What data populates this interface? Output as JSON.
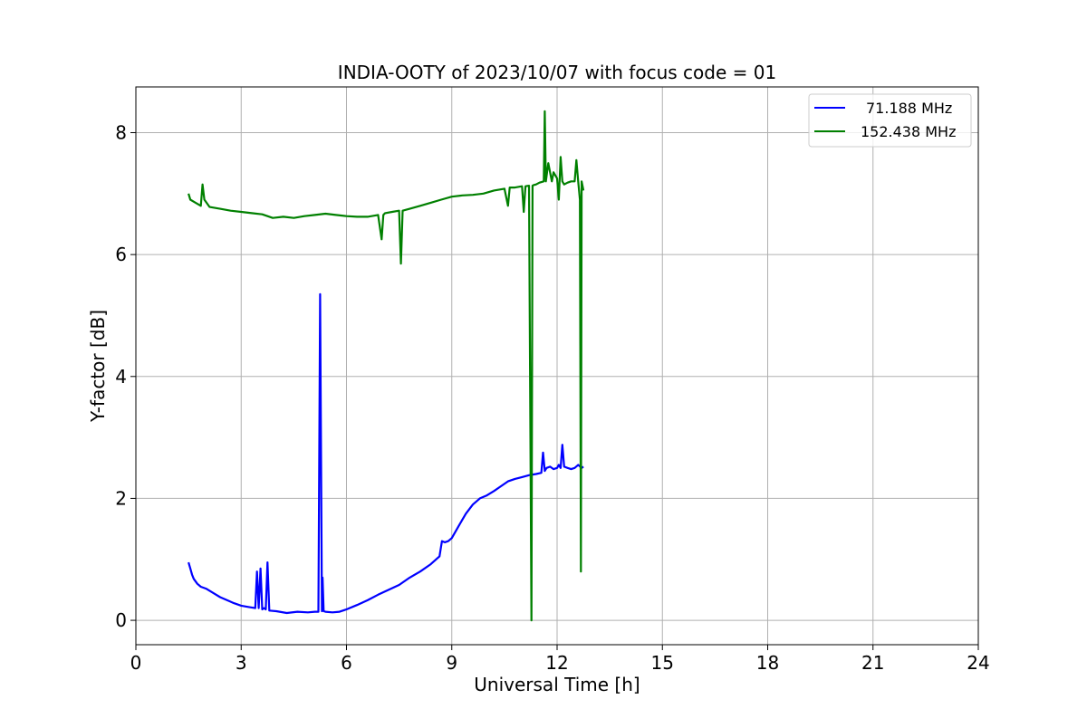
{
  "chart_data": {
    "type": "line",
    "title": "INDIA-OOTY of 2023/10/07 with focus code = 01",
    "xlabel": "Universal Time [h]",
    "ylabel": "Y-factor [dB]",
    "xlim": [
      0,
      24
    ],
    "ylim": [
      -0.4,
      8.75
    ],
    "xticks": [
      0,
      3,
      6,
      9,
      12,
      15,
      18,
      21,
      24
    ],
    "xtick_labels": [
      "0",
      "3",
      "6",
      "9",
      "12",
      "15",
      "18",
      "21",
      "24"
    ],
    "yticks": [
      0,
      2,
      4,
      6,
      8
    ],
    "ytick_labels": [
      "0",
      "2",
      "4",
      "6",
      "8"
    ],
    "grid": true,
    "legend_position": "top-right",
    "series": [
      {
        "name": "71.188 MHz",
        "color": "#0000ff",
        "x": [
          1.5,
          1.55,
          1.6,
          1.65,
          1.75,
          1.85,
          2.0,
          2.2,
          2.4,
          2.6,
          2.8,
          3.0,
          3.2,
          3.4,
          3.45,
          3.5,
          3.55,
          3.6,
          3.65,
          3.7,
          3.75,
          3.8,
          4.0,
          4.3,
          4.6,
          4.9,
          5.1,
          5.2,
          5.25,
          5.3,
          5.32,
          5.35,
          5.4,
          5.6,
          5.8,
          6.0,
          6.3,
          6.6,
          6.9,
          7.2,
          7.5,
          7.8,
          8.1,
          8.4,
          8.65,
          8.72,
          8.8,
          8.9,
          9.0,
          9.2,
          9.4,
          9.6,
          9.8,
          10.0,
          10.2,
          10.4,
          10.6,
          10.8,
          11.0,
          11.2,
          11.4,
          11.55,
          11.6,
          11.65,
          11.7,
          11.8,
          11.9,
          12.0,
          12.05,
          12.1,
          12.15,
          12.2,
          12.3,
          12.4,
          12.5,
          12.6,
          12.7,
          12.75
        ],
        "y": [
          0.95,
          0.85,
          0.75,
          0.68,
          0.6,
          0.55,
          0.52,
          0.45,
          0.38,
          0.33,
          0.28,
          0.24,
          0.22,
          0.2,
          0.8,
          0.2,
          0.85,
          0.18,
          0.2,
          0.18,
          0.95,
          0.16,
          0.15,
          0.12,
          0.14,
          0.13,
          0.14,
          0.14,
          5.35,
          0.15,
          0.7,
          0.15,
          0.14,
          0.13,
          0.14,
          0.18,
          0.25,
          0.33,
          0.42,
          0.5,
          0.58,
          0.7,
          0.8,
          0.92,
          1.05,
          1.3,
          1.28,
          1.3,
          1.35,
          1.55,
          1.75,
          1.9,
          2.0,
          2.05,
          2.12,
          2.2,
          2.28,
          2.32,
          2.35,
          2.38,
          2.4,
          2.42,
          2.75,
          2.45,
          2.5,
          2.52,
          2.48,
          2.5,
          2.55,
          2.5,
          2.88,
          2.52,
          2.5,
          2.48,
          2.5,
          2.55,
          2.5,
          2.52
        ]
      },
      {
        "name": "152.438 MHz",
        "color": "#008000",
        "x": [
          1.5,
          1.55,
          1.7,
          1.85,
          1.9,
          1.95,
          2.1,
          2.4,
          2.7,
          3.0,
          3.3,
          3.6,
          3.9,
          4.2,
          4.5,
          4.8,
          5.1,
          5.4,
          5.7,
          6.0,
          6.3,
          6.6,
          6.9,
          7.0,
          7.05,
          7.1,
          7.3,
          7.5,
          7.55,
          7.6,
          7.8,
          8.1,
          8.4,
          8.7,
          9.0,
          9.3,
          9.6,
          9.9,
          10.2,
          10.5,
          10.6,
          10.65,
          10.8,
          11.0,
          11.05,
          11.1,
          11.2,
          11.27,
          11.3,
          11.33,
          11.4,
          11.5,
          11.62,
          11.65,
          11.68,
          11.75,
          11.85,
          11.9,
          12.0,
          12.05,
          12.1,
          12.15,
          12.2,
          12.3,
          12.4,
          12.5,
          12.55,
          12.6,
          12.65,
          12.68,
          12.7,
          12.75
        ],
        "y": [
          7.0,
          6.9,
          6.85,
          6.8,
          7.15,
          6.9,
          6.78,
          6.75,
          6.72,
          6.7,
          6.68,
          6.66,
          6.6,
          6.62,
          6.6,
          6.63,
          6.65,
          6.67,
          6.65,
          6.63,
          6.62,
          6.62,
          6.65,
          6.25,
          6.65,
          6.68,
          6.7,
          6.72,
          5.85,
          6.72,
          6.75,
          6.8,
          6.85,
          6.9,
          6.95,
          6.97,
          6.98,
          7.0,
          7.05,
          7.08,
          6.8,
          7.1,
          7.1,
          7.12,
          6.7,
          7.12,
          7.13,
          0.0,
          7.13,
          7.14,
          7.15,
          7.18,
          7.2,
          8.35,
          7.2,
          7.5,
          7.2,
          7.35,
          7.25,
          6.9,
          7.6,
          7.2,
          7.15,
          7.18,
          7.2,
          7.2,
          7.55,
          7.2,
          6.9,
          0.8,
          7.2,
          7.05
        ]
      }
    ]
  }
}
